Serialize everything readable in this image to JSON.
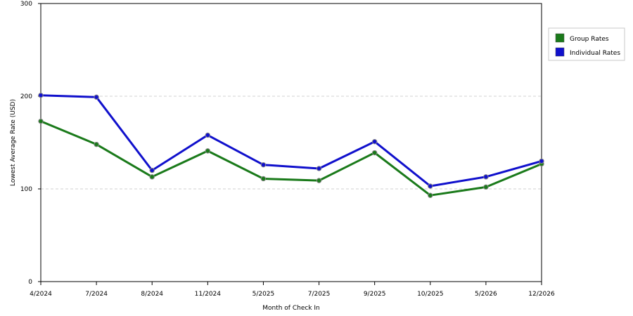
{
  "chart_data": {
    "type": "line",
    "title": "",
    "xlabel": "Month of Check In",
    "ylabel": "Lowest Average Rate (USD)",
    "ylim": [
      0,
      300
    ],
    "yticks": [
      0,
      100,
      200,
      300
    ],
    "grid": true,
    "legend_position": "top-right",
    "categories": [
      "4/2024",
      "7/2024",
      "8/2024",
      "11/2024",
      "5/2025",
      "7/2025",
      "9/2025",
      "10/2025",
      "5/2026",
      "12/2026"
    ],
    "series": [
      {
        "name": "Group Rates",
        "color": "#1a7a1a",
        "values": [
          173,
          148,
          113,
          141,
          111,
          109,
          139,
          93,
          102,
          127
        ]
      },
      {
        "name": "Individual Rates",
        "color": "#1010cc",
        "values": [
          201,
          199,
          120,
          158,
          126,
          122,
          151,
          103,
          113,
          130
        ]
      }
    ]
  }
}
